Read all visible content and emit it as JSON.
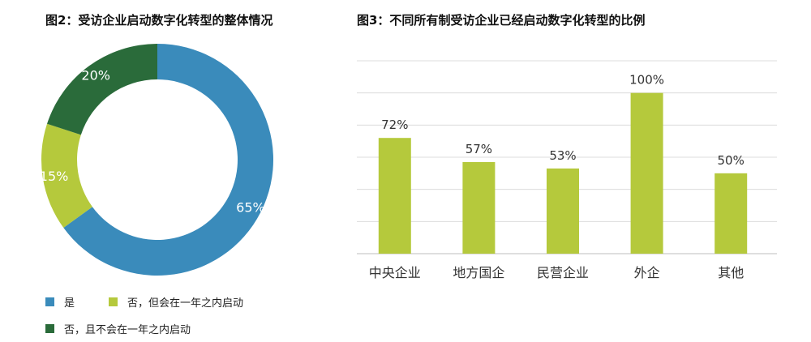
{
  "chart_data": [
    {
      "type": "pie",
      "title": "图2：受访企业启动数字化转型的整体情况",
      "slices": [
        {
          "label": "是",
          "value": 65,
          "display": "65%",
          "color": "#3a8bbb"
        },
        {
          "label": "否，但会在一年之内启动",
          "value": 15,
          "display": "15%",
          "color": "#b5c93c"
        },
        {
          "label": "否，且不会在一年之内启动",
          "value": 20,
          "display": "20%",
          "color": "#2a6b3a"
        }
      ],
      "legend_placement": "bottom-left"
    },
    {
      "type": "bar",
      "title": "图3：不同所有制受访企业已经启动数字化转型的比例",
      "categories": [
        "中央企业",
        "地方国企",
        "民营企业",
        "外企",
        "其他"
      ],
      "values": [
        72,
        57,
        53,
        100,
        50
      ],
      "value_labels": [
        "72%",
        "57%",
        "53%",
        "100%",
        "50%"
      ],
      "color": "#b5c93c",
      "ylim": [
        0,
        120
      ],
      "grid": true
    }
  ]
}
